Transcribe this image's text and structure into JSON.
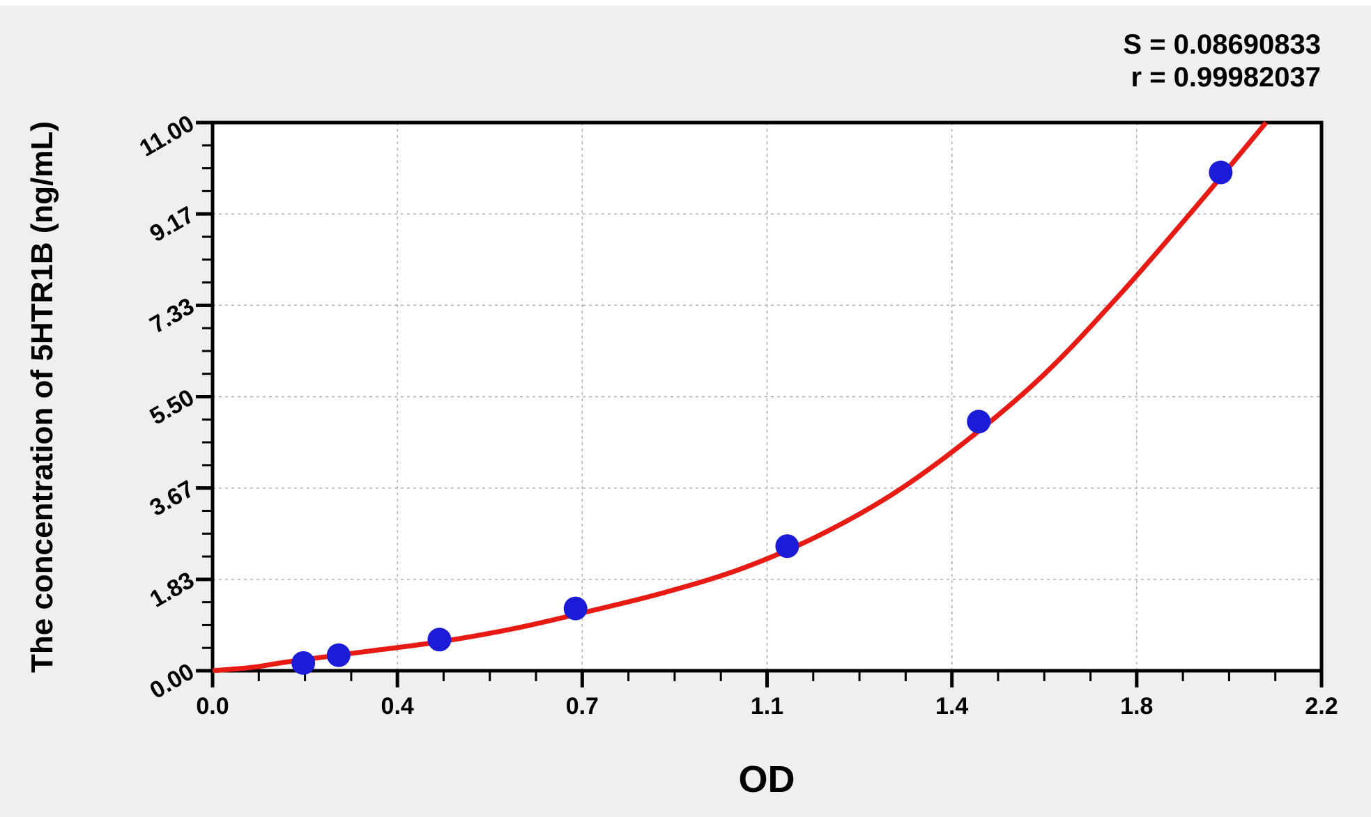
{
  "figure": {
    "background": "#efefee",
    "plot_background": "#ffffff",
    "axis_color": "#000000"
  },
  "chart_data": {
    "type": "scatter",
    "title": "",
    "xlabel": "OD",
    "ylabel": "The concentration of 5HTR1B (ng/mL)",
    "xlim": [
      0,
      2.2
    ],
    "ylim": [
      0,
      11
    ],
    "x_major_ticks": [
      0,
      0.36667,
      0.73333,
      1.1,
      1.46667,
      1.83333,
      2.2
    ],
    "x_tick_labels": [
      "0.0",
      "0.4",
      "0.7",
      "1.1",
      "1.4",
      "1.8",
      "2.2"
    ],
    "y_major_ticks": [
      0,
      1.83333,
      3.66667,
      5.5,
      7.33333,
      9.16667,
      11
    ],
    "y_tick_labels": [
      "0.00",
      "1.83",
      "3.67",
      "5.50",
      "7.33",
      "9.17",
      "11.00"
    ],
    "minor_ticks_per_interval": 3,
    "grid": {
      "style": "dashed",
      "color": "#ababab",
      "on": true
    },
    "annotations": {
      "s_label": "S = 0.08690833",
      "r_label": "r = 0.99982037"
    },
    "legend": null,
    "style": {
      "marker_radius": 17,
      "curve_width": 7
    },
    "series": [
      {
        "name": "standard-points",
        "type": "scatter",
        "color": "#1c1cd8",
        "x": [
          0.18,
          0.25,
          0.45,
          0.72,
          1.14,
          1.52,
          2.0
        ],
        "y": [
          0.156,
          0.312,
          0.625,
          1.25,
          2.5,
          5.0,
          10.0
        ]
      },
      {
        "name": "fit-curve",
        "type": "line",
        "color": "#e81b14",
        "x": [
          0.0,
          0.08,
          0.15,
          0.3,
          0.45,
          0.6,
          0.75,
          0.9,
          1.05,
          1.2,
          1.35,
          1.5,
          1.65,
          1.8,
          1.95,
          2.09
        ],
        "y": [
          0.0,
          0.07,
          0.18,
          0.38,
          0.58,
          0.85,
          1.2,
          1.58,
          2.05,
          2.7,
          3.55,
          4.65,
          5.95,
          7.55,
          9.3,
          11.0
        ]
      }
    ]
  }
}
